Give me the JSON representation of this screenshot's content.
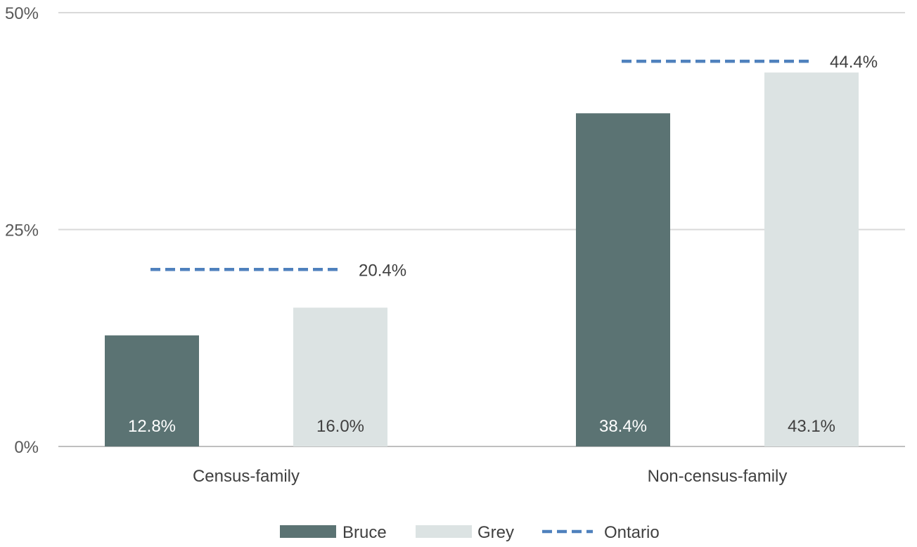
{
  "chart_data": {
    "type": "bar",
    "categories": [
      "Census-family",
      "Non-census-family"
    ],
    "series": [
      {
        "name": "Bruce",
        "kind": "bar",
        "color": "#5b7373",
        "values": [
          12.8,
          38.4
        ],
        "labels": [
          "12.8%",
          "38.4%"
        ]
      },
      {
        "name": "Grey",
        "kind": "bar",
        "color": "#dce3e3",
        "values": [
          16.0,
          43.1
        ],
        "labels": [
          "16.0%",
          "43.1%"
        ]
      },
      {
        "name": "Ontario",
        "kind": "dashed-line",
        "color": "#4f81bd",
        "values": [
          20.4,
          44.4
        ],
        "labels": [
          "20.4%",
          "44.4%"
        ]
      }
    ],
    "ylim": [
      0,
      50
    ],
    "y_ticks": [
      0,
      25,
      50
    ],
    "y_tick_labels": [
      "0%",
      "25%",
      "50%"
    ],
    "grid": true,
    "legend_position": "bottom"
  }
}
